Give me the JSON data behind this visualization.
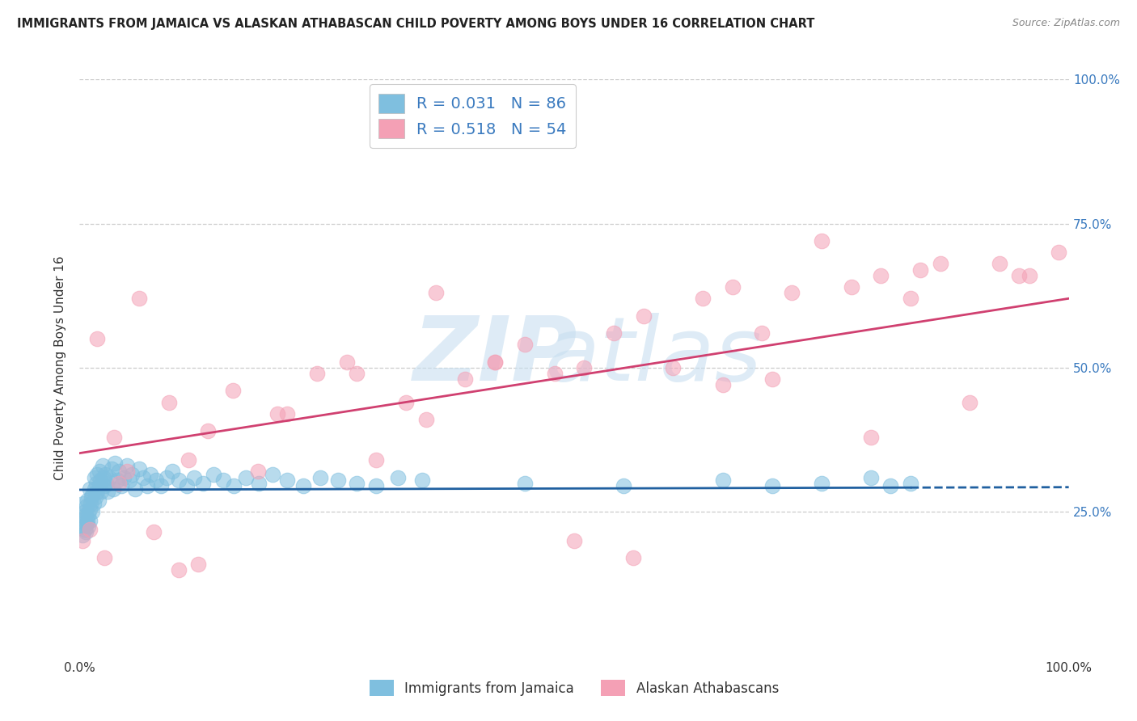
{
  "title": "IMMIGRANTS FROM JAMAICA VS ALASKAN ATHABASCAN CHILD POVERTY AMONG BOYS UNDER 16 CORRELATION CHART",
  "source": "Source: ZipAtlas.com",
  "ylabel": "Child Poverty Among Boys Under 16",
  "color_blue": "#7fbfdf",
  "color_pink": "#f4a0b5",
  "color_blue_line": "#2060a0",
  "color_pink_line": "#d04070",
  "R1": 0.031,
  "N1": 86,
  "R2": 0.518,
  "N2": 54,
  "legend_series1": "Immigrants from Jamaica",
  "legend_series2": "Alaskan Athabascans",
  "xmin": 0.0,
  "xmax": 1.0,
  "ymin": 0.0,
  "ymax": 1.0,
  "jamaica_x": [
    0.002,
    0.003,
    0.004,
    0.004,
    0.005,
    0.005,
    0.005,
    0.006,
    0.006,
    0.007,
    0.007,
    0.008,
    0.008,
    0.009,
    0.009,
    0.01,
    0.01,
    0.01,
    0.011,
    0.012,
    0.013,
    0.013,
    0.014,
    0.015,
    0.015,
    0.016,
    0.017,
    0.018,
    0.018,
    0.019,
    0.02,
    0.02,
    0.021,
    0.022,
    0.023,
    0.024,
    0.025,
    0.026,
    0.027,
    0.028,
    0.03,
    0.032,
    0.034,
    0.036,
    0.038,
    0.04,
    0.042,
    0.045,
    0.048,
    0.05,
    0.053,
    0.056,
    0.06,
    0.064,
    0.068,
    0.072,
    0.077,
    0.082,
    0.088,
    0.094,
    0.1,
    0.108,
    0.116,
    0.125,
    0.135,
    0.145,
    0.156,
    0.168,
    0.181,
    0.195,
    0.21,
    0.226,
    0.243,
    0.261,
    0.28,
    0.3,
    0.322,
    0.346,
    0.45,
    0.55,
    0.65,
    0.7,
    0.75,
    0.8,
    0.82,
    0.84
  ],
  "jamaica_y": [
    0.235,
    0.21,
    0.225,
    0.265,
    0.24,
    0.22,
    0.25,
    0.215,
    0.245,
    0.23,
    0.26,
    0.235,
    0.27,
    0.225,
    0.245,
    0.255,
    0.235,
    0.29,
    0.265,
    0.275,
    0.25,
    0.28,
    0.265,
    0.29,
    0.31,
    0.275,
    0.3,
    0.285,
    0.315,
    0.27,
    0.295,
    0.32,
    0.305,
    0.285,
    0.33,
    0.31,
    0.295,
    0.315,
    0.3,
    0.285,
    0.31,
    0.325,
    0.29,
    0.335,
    0.305,
    0.32,
    0.295,
    0.31,
    0.33,
    0.305,
    0.315,
    0.29,
    0.325,
    0.31,
    0.295,
    0.315,
    0.305,
    0.295,
    0.31,
    0.32,
    0.305,
    0.295,
    0.31,
    0.3,
    0.315,
    0.305,
    0.295,
    0.31,
    0.3,
    0.315,
    0.305,
    0.295,
    0.31,
    0.305,
    0.3,
    0.295,
    0.31,
    0.305,
    0.3,
    0.295,
    0.305,
    0.295,
    0.3,
    0.31,
    0.295,
    0.3
  ],
  "athabascan_x": [
    0.003,
    0.01,
    0.018,
    0.025,
    0.035,
    0.048,
    0.06,
    0.075,
    0.09,
    0.11,
    0.13,
    0.155,
    0.18,
    0.21,
    0.24,
    0.27,
    0.3,
    0.33,
    0.36,
    0.39,
    0.42,
    0.45,
    0.48,
    0.51,
    0.54,
    0.57,
    0.6,
    0.63,
    0.66,
    0.69,
    0.72,
    0.75,
    0.78,
    0.81,
    0.84,
    0.87,
    0.9,
    0.93,
    0.96,
    0.99,
    0.2,
    0.35,
    0.5,
    0.65,
    0.8,
    0.04,
    0.12,
    0.28,
    0.42,
    0.56,
    0.7,
    0.85,
    0.95,
    0.1
  ],
  "athabascan_y": [
    0.2,
    0.22,
    0.55,
    0.17,
    0.38,
    0.32,
    0.62,
    0.215,
    0.44,
    0.34,
    0.39,
    0.46,
    0.32,
    0.42,
    0.49,
    0.51,
    0.34,
    0.44,
    0.63,
    0.48,
    0.51,
    0.54,
    0.49,
    0.5,
    0.56,
    0.59,
    0.5,
    0.62,
    0.64,
    0.56,
    0.63,
    0.72,
    0.64,
    0.66,
    0.62,
    0.68,
    0.44,
    0.68,
    0.66,
    0.7,
    0.42,
    0.41,
    0.2,
    0.47,
    0.38,
    0.3,
    0.16,
    0.49,
    0.51,
    0.17,
    0.48,
    0.67,
    0.66,
    0.15
  ]
}
